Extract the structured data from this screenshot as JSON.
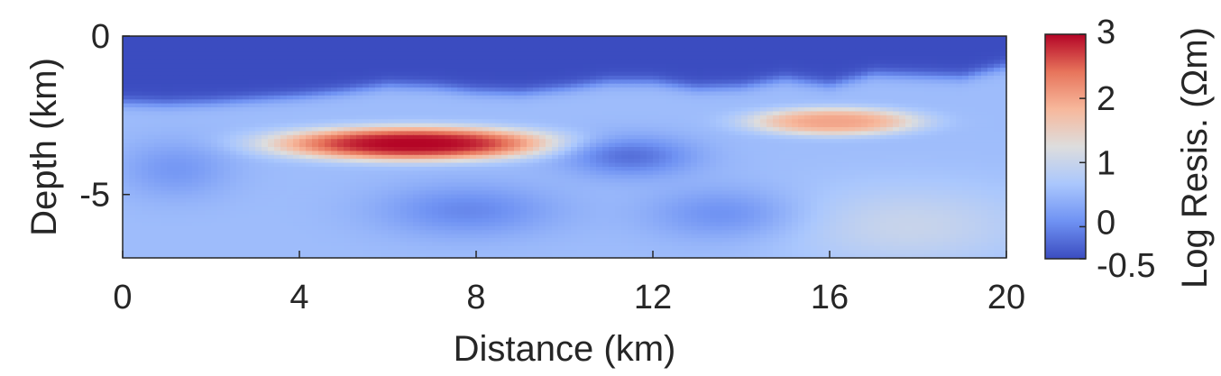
{
  "chart_data": {
    "type": "heatmap",
    "title": "",
    "xlabel": "Distance (km)",
    "ylabel": "Depth (km)",
    "colorbar_label": "Log Resis. (Ωm)",
    "xlim": [
      0,
      20
    ],
    "ylim": [
      -7,
      0
    ],
    "x_ticks": [
      0,
      4,
      8,
      12,
      16,
      20
    ],
    "y_ticks": [
      0,
      -5
    ],
    "x_tick_labels": [
      "0",
      "4",
      "8",
      "12",
      "16",
      "20"
    ],
    "y_tick_labels": [
      "0",
      "-5"
    ],
    "colorbar_range": [
      -0.5,
      3
    ],
    "colorbar_ticks": [
      3,
      2,
      1,
      0,
      -0.5
    ],
    "colorbar_tick_labels": [
      "3",
      "2",
      "1",
      "0",
      "-0.5"
    ],
    "colormap": [
      "#3b4cc0",
      "#6f92f3",
      "#aac7fd",
      "#dddddd",
      "#f7b89c",
      "#e7745b",
      "#b40426"
    ],
    "background_log_resistivity": 0.55,
    "surface_layer": {
      "log_resistivity": -0.5,
      "base_depth_profile": [
        [
          0,
          -2.1
        ],
        [
          1,
          -2.15
        ],
        [
          2,
          -2.1
        ],
        [
          3,
          -2.0
        ],
        [
          4,
          -1.9
        ],
        [
          5,
          -1.75
        ],
        [
          6,
          -1.55
        ],
        [
          7,
          -1.6
        ],
        [
          8,
          -1.75
        ],
        [
          9,
          -1.8
        ],
        [
          10,
          -1.65
        ],
        [
          11,
          -1.45
        ],
        [
          12,
          -1.45
        ],
        [
          13,
          -1.65
        ],
        [
          14,
          -1.6
        ],
        [
          15,
          -1.35
        ],
        [
          16,
          -1.55
        ],
        [
          17,
          -1.2
        ],
        [
          18,
          -1.25
        ],
        [
          19,
          -1.3
        ],
        [
          20,
          -0.95
        ]
      ]
    },
    "anomalies": [
      {
        "center": [
          6.6,
          -3.4
        ],
        "half_width_km": 3.3,
        "half_height_km": 0.55,
        "peak_log_resistivity": 3.0
      },
      {
        "center": [
          16.1,
          -2.7
        ],
        "half_width_km": 2.0,
        "half_height_km": 0.45,
        "peak_log_resistivity": 2.0
      },
      {
        "center": [
          11.5,
          -3.8
        ],
        "half_width_km": 1.6,
        "half_height_km": 0.7,
        "peak_log_resistivity": -0.2
      },
      {
        "center": [
          7.8,
          -5.5
        ],
        "half_width_km": 2.2,
        "half_height_km": 0.9,
        "peak_log_resistivity": 0.0
      },
      {
        "center": [
          1.2,
          -4.2
        ],
        "half_width_km": 1.4,
        "half_height_km": 1.0,
        "peak_log_resistivity": 0.15
      },
      {
        "center": [
          17.8,
          -6.0
        ],
        "half_width_km": 3.0,
        "half_height_km": 1.4,
        "peak_log_resistivity": 1.0
      },
      {
        "center": [
          13.5,
          -5.6
        ],
        "half_width_km": 1.8,
        "half_height_km": 0.9,
        "peak_log_resistivity": 0.1
      }
    ]
  }
}
